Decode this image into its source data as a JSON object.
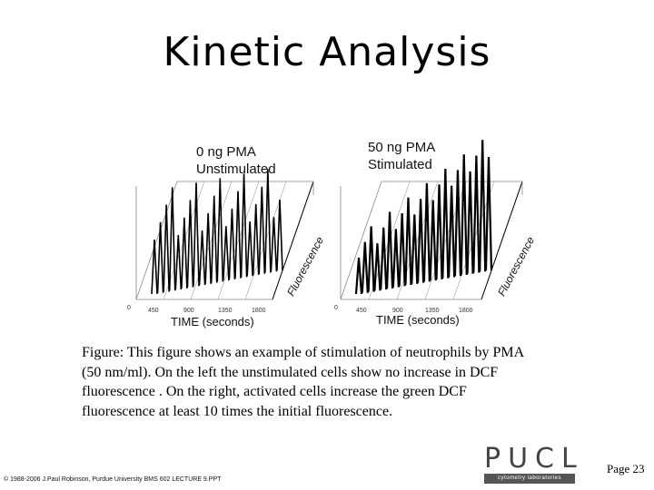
{
  "title": "Kinetic Analysis",
  "panels": [
    {
      "label_line1": "0 ng PMA",
      "label_line2": "Unstimulated",
      "x_title": "TIME (seconds)",
      "z_title": "Fluorescence",
      "ticks": [
        "0",
        "450",
        "900",
        "1350",
        "1800"
      ]
    },
    {
      "label_line1": "50 ng PMA",
      "label_line2": "Stimulated",
      "x_title": "TIME (seconds)",
      "z_title": "Fluorescence",
      "ticks": [
        "0",
        "450",
        "900",
        "1350",
        "1800"
      ]
    }
  ],
  "caption": "Figure:  This figure shows an example of stimulation of neutrophils by PMA (50 nm/ml). On the left the unstimulated cells show no increase in DCF fluorescence . On the right, activated cells increase the green DCF fluorescence at least 10 times the initial fluorescence.",
  "copyright": "© 1988-2006 J.Paul Robinson, Purdue University BMS 602 LECTURE 9.PPT",
  "logo": {
    "word": "PUCL",
    "subtitle": "cytometry laboratories"
  },
  "page_label": "Page 23",
  "colors": {
    "ink": "#000000",
    "grid": "#888888",
    "logo_gray": "#555555"
  }
}
